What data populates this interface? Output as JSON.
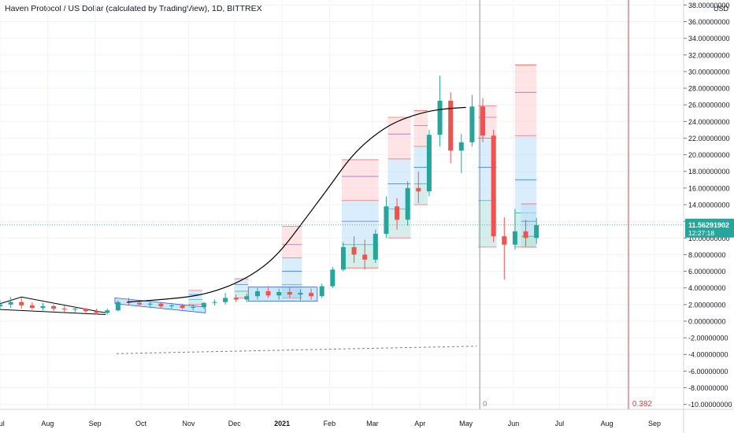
{
  "header": {
    "title": "Haven Protocol / US Dollar (calculated by TradingView), 1D, BITTREX"
  },
  "colors": {
    "up": "#26a69a",
    "down": "#ef5350",
    "curve": "#000000",
    "price_line": "#26a69a",
    "red_line": "#f23645",
    "grid": "#f0f3fa"
  },
  "chart_data": {
    "type": "candlestick",
    "currency_label": "USD",
    "y_axis": {
      "ylim": [
        -10.6,
        38.6
      ],
      "ticks": [
        38,
        36,
        34,
        32,
        30,
        28,
        26,
        24,
        22,
        20,
        18,
        16,
        14,
        12,
        10,
        8,
        6,
        4,
        2,
        0,
        -2,
        -4,
        -6,
        -8,
        -10
      ],
      "tick_decimals": 8
    },
    "x_axis": {
      "start": "2020-07-01",
      "end": "2021-09-20",
      "labels": [
        {
          "date": "2020-07-01",
          "text": "Jul",
          "bold": false
        },
        {
          "date": "2020-08-01",
          "text": "Aug",
          "bold": false
        },
        {
          "date": "2020-09-01",
          "text": "Sep",
          "bold": false
        },
        {
          "date": "2020-10-01",
          "text": "Oct",
          "bold": false
        },
        {
          "date": "2020-11-01",
          "text": "Nov",
          "bold": false
        },
        {
          "date": "2020-12-01",
          "text": "Dec",
          "bold": false
        },
        {
          "date": "2021-01-01",
          "text": "2021",
          "bold": true
        },
        {
          "date": "2021-02-01",
          "text": "Feb",
          "bold": false
        },
        {
          "date": "2021-03-01",
          "text": "Mar",
          "bold": false
        },
        {
          "date": "2021-04-01",
          "text": "Apr",
          "bold": false
        },
        {
          "date": "2021-05-01",
          "text": "May",
          "bold": false
        },
        {
          "date": "2021-06-01",
          "text": "Jun",
          "bold": false
        },
        {
          "date": "2021-07-01",
          "text": "Jul",
          "bold": false
        },
        {
          "date": "2021-08-01",
          "text": "Aug",
          "bold": false
        },
        {
          "date": "2021-09-01",
          "text": "Sep",
          "bold": false
        }
      ]
    },
    "last_price": {
      "value": 11.56291902,
      "label": "11.56291902",
      "countdown": "12:27:18"
    },
    "vertical_line": {
      "date": "2021-05-10",
      "label": "0"
    },
    "red_line": {
      "date": "2021-08-15",
      "label": "0.382"
    },
    "dashed_trendline": {
      "start": [
        "2020-09-15",
        -3.9
      ],
      "end": [
        "2021-05-08",
        -3.0
      ]
    },
    "sigmoid_curve": {
      "points": [
        [
          "2020-09-22",
          2.3
        ],
        [
          "2020-10-15",
          2.6
        ],
        [
          "2020-11-05",
          3.0
        ],
        [
          "2020-11-20",
          3.7
        ],
        [
          "2020-12-05",
          4.8
        ],
        [
          "2020-12-20",
          6.5
        ],
        [
          "2021-01-01",
          8.6
        ],
        [
          "2021-01-15",
          12.0
        ],
        [
          "2021-02-01",
          16.2
        ],
        [
          "2021-02-15",
          19.8
        ],
        [
          "2021-03-01",
          22.2
        ],
        [
          "2021-03-15",
          23.9
        ],
        [
          "2021-04-01",
          25.0
        ],
        [
          "2021-04-15",
          25.5
        ],
        [
          "2021-05-01",
          25.7
        ]
      ]
    },
    "triangle_pattern": {
      "upper": [
        [
          "2020-07-01",
          2.1
        ],
        [
          "2020-07-15",
          2.9
        ],
        [
          "2020-09-08",
          1.0
        ]
      ],
      "lower": [
        [
          "2020-07-01",
          1.4
        ],
        [
          "2020-09-08",
          0.8
        ]
      ]
    },
    "pattern_boxes": [
      {
        "start": "2020-09-14",
        "end": "2020-11-12",
        "bottom_start": 2.1,
        "bottom_end": 1.0,
        "top_start": 2.8,
        "top_end": 1.7
      },
      {
        "start": "2020-12-10",
        "end": "2021-01-24",
        "bottom_start": 2.4,
        "bottom_end": 2.4,
        "top_start": 4.1,
        "top_end": 4.1
      }
    ],
    "fib_blocks": [
      {
        "start": "2020-11-01",
        "end": "2020-11-10",
        "levels": [
          2.0,
          2.6,
          3.2,
          3.7
        ]
      },
      {
        "start": "2020-12-01",
        "end": "2020-12-10",
        "levels": [
          2.8,
          3.6,
          4.4,
          5.1
        ]
      },
      {
        "start": "2021-01-01",
        "end": "2021-01-14",
        "levels": [
          2.8,
          4.4,
          6.0,
          7.6,
          9.2,
          11.4
        ]
      },
      {
        "start": "2021-02-09",
        "end": "2021-03-05",
        "levels": [
          6.4,
          9.2,
          12.0,
          14.5,
          17.4,
          19.4
        ]
      },
      {
        "start": "2021-03-11",
        "end": "2021-03-26",
        "levels": [
          10.0,
          13.5,
          16.5,
          19.5,
          22.5,
          24.5
        ]
      },
      {
        "start": "2021-03-28",
        "end": "2021-04-06",
        "levels": [
          14.0,
          16.5,
          18.5,
          21.0,
          23.5,
          25.3
        ]
      },
      {
        "start": "2021-05-09",
        "end": "2021-05-21",
        "levels": [
          8.9,
          14.5,
          18.5,
          22.0,
          24.5,
          25.9
        ]
      },
      {
        "start": "2021-06-02",
        "end": "2021-06-16",
        "levels": [
          8.9,
          13.0,
          17.0,
          22.3,
          27.5,
          30.8
        ]
      },
      {
        "start": "2021-06-06",
        "end": "2021-06-16",
        "levels": [
          8.9,
          10.2,
          12.0,
          14.1
        ]
      }
    ],
    "candles": [
      {
        "date": "2020-07-01",
        "o": 1.8,
        "h": 2.5,
        "l": 1.3,
        "c": 2.0
      },
      {
        "date": "2020-07-08",
        "o": 2.0,
        "h": 2.9,
        "l": 1.6,
        "c": 2.3
      },
      {
        "date": "2020-07-15",
        "o": 2.3,
        "h": 2.8,
        "l": 1.5,
        "c": 1.9
      },
      {
        "date": "2020-07-22",
        "o": 1.9,
        "h": 2.3,
        "l": 1.4,
        "c": 1.6
      },
      {
        "date": "2020-07-29",
        "o": 1.6,
        "h": 2.2,
        "l": 1.3,
        "c": 1.8
      },
      {
        "date": "2020-08-05",
        "o": 1.8,
        "h": 2.0,
        "l": 1.2,
        "c": 1.5
      },
      {
        "date": "2020-08-12",
        "o": 1.5,
        "h": 1.9,
        "l": 1.1,
        "c": 1.4
      },
      {
        "date": "2020-08-19",
        "o": 1.4,
        "h": 1.7,
        "l": 1.0,
        "c": 1.5
      },
      {
        "date": "2020-08-26",
        "o": 1.5,
        "h": 1.6,
        "l": 1.0,
        "c": 1.2
      },
      {
        "date": "2020-09-02",
        "o": 1.2,
        "h": 1.5,
        "l": 0.8,
        "c": 1.0
      },
      {
        "date": "2020-09-09",
        "o": 1.0,
        "h": 1.5,
        "l": 0.8,
        "c": 1.3
      },
      {
        "date": "2020-09-16",
        "o": 1.3,
        "h": 2.5,
        "l": 1.2,
        "c": 2.3
      },
      {
        "date": "2020-09-23",
        "o": 2.3,
        "h": 2.8,
        "l": 1.9,
        "c": 2.2
      },
      {
        "date": "2020-09-30",
        "o": 2.2,
        "h": 2.5,
        "l": 1.8,
        "c": 2.0
      },
      {
        "date": "2020-10-07",
        "o": 2.0,
        "h": 2.4,
        "l": 1.7,
        "c": 2.1
      },
      {
        "date": "2020-10-14",
        "o": 2.1,
        "h": 2.3,
        "l": 1.6,
        "c": 1.8
      },
      {
        "date": "2020-10-21",
        "o": 1.8,
        "h": 2.2,
        "l": 1.5,
        "c": 1.9
      },
      {
        "date": "2020-10-28",
        "o": 1.9,
        "h": 2.1,
        "l": 1.4,
        "c": 1.6
      },
      {
        "date": "2020-11-04",
        "o": 1.6,
        "h": 2.0,
        "l": 1.3,
        "c": 1.7
      },
      {
        "date": "2020-11-11",
        "o": 1.7,
        "h": 2.3,
        "l": 1.5,
        "c": 2.2
      },
      {
        "date": "2020-11-18",
        "o": 2.2,
        "h": 2.6,
        "l": 1.9,
        "c": 2.3
      },
      {
        "date": "2020-11-25",
        "o": 2.3,
        "h": 3.4,
        "l": 2.0,
        "c": 2.8
      },
      {
        "date": "2020-12-02",
        "o": 2.8,
        "h": 3.2,
        "l": 2.3,
        "c": 2.6
      },
      {
        "date": "2020-12-09",
        "o": 2.6,
        "h": 3.3,
        "l": 2.3,
        "c": 3.0
      },
      {
        "date": "2020-12-16",
        "o": 3.0,
        "h": 4.0,
        "l": 2.6,
        "c": 3.6
      },
      {
        "date": "2020-12-23",
        "o": 3.6,
        "h": 4.2,
        "l": 2.8,
        "c": 3.1
      },
      {
        "date": "2020-12-30",
        "o": 3.1,
        "h": 3.9,
        "l": 2.6,
        "c": 3.5
      },
      {
        "date": "2021-01-06",
        "o": 3.5,
        "h": 4.1,
        "l": 2.8,
        "c": 3.2
      },
      {
        "date": "2021-01-13",
        "o": 3.2,
        "h": 3.8,
        "l": 2.5,
        "c": 3.4
      },
      {
        "date": "2021-01-20",
        "o": 3.4,
        "h": 3.9,
        "l": 2.6,
        "c": 3.0
      },
      {
        "date": "2021-01-27",
        "o": 3.0,
        "h": 4.5,
        "l": 2.8,
        "c": 4.2
      },
      {
        "date": "2021-02-03",
        "o": 4.2,
        "h": 6.5,
        "l": 4.0,
        "c": 6.2
      },
      {
        "date": "2021-02-10",
        "o": 6.2,
        "h": 9.5,
        "l": 6.0,
        "c": 8.9
      },
      {
        "date": "2021-02-17",
        "o": 8.9,
        "h": 10.2,
        "l": 7.0,
        "c": 8.0
      },
      {
        "date": "2021-02-24",
        "o": 8.0,
        "h": 9.8,
        "l": 6.2,
        "c": 7.4
      },
      {
        "date": "2021-03-03",
        "o": 7.4,
        "h": 11.0,
        "l": 7.0,
        "c": 10.5
      },
      {
        "date": "2021-03-10",
        "o": 10.5,
        "h": 15.0,
        "l": 10.0,
        "c": 13.8
      },
      {
        "date": "2021-03-17",
        "o": 13.8,
        "h": 14.8,
        "l": 11.0,
        "c": 12.2
      },
      {
        "date": "2021-03-24",
        "o": 12.2,
        "h": 16.8,
        "l": 11.5,
        "c": 16.0
      },
      {
        "date": "2021-03-31",
        "o": 16.0,
        "h": 18.0,
        "l": 14.2,
        "c": 15.6
      },
      {
        "date": "2021-04-07",
        "o": 15.6,
        "h": 23.0,
        "l": 15.0,
        "c": 22.4
      },
      {
        "date": "2021-04-14",
        "o": 22.4,
        "h": 29.5,
        "l": 21.0,
        "c": 26.5
      },
      {
        "date": "2021-04-21",
        "o": 26.5,
        "h": 27.5,
        "l": 19.0,
        "c": 20.5
      },
      {
        "date": "2021-04-28",
        "o": 20.5,
        "h": 22.5,
        "l": 17.8,
        "c": 21.5
      },
      {
        "date": "2021-05-05",
        "o": 21.5,
        "h": 27.2,
        "l": 21.0,
        "c": 25.8
      },
      {
        "date": "2021-05-12",
        "o": 25.8,
        "h": 26.8,
        "l": 21.5,
        "c": 22.3
      },
      {
        "date": "2021-05-19",
        "o": 22.3,
        "h": 23.0,
        "l": 9.5,
        "c": 10.2
      },
      {
        "date": "2021-05-26",
        "o": 10.2,
        "h": 12.5,
        "l": 5.0,
        "c": 9.2
      },
      {
        "date": "2021-06-02",
        "o": 9.2,
        "h": 13.5,
        "l": 8.6,
        "c": 10.8
      },
      {
        "date": "2021-06-09",
        "o": 10.8,
        "h": 12.2,
        "l": 9.0,
        "c": 10.0
      },
      {
        "date": "2021-06-16",
        "o": 10.0,
        "h": 12.4,
        "l": 9.3,
        "c": 11.56
      }
    ]
  }
}
